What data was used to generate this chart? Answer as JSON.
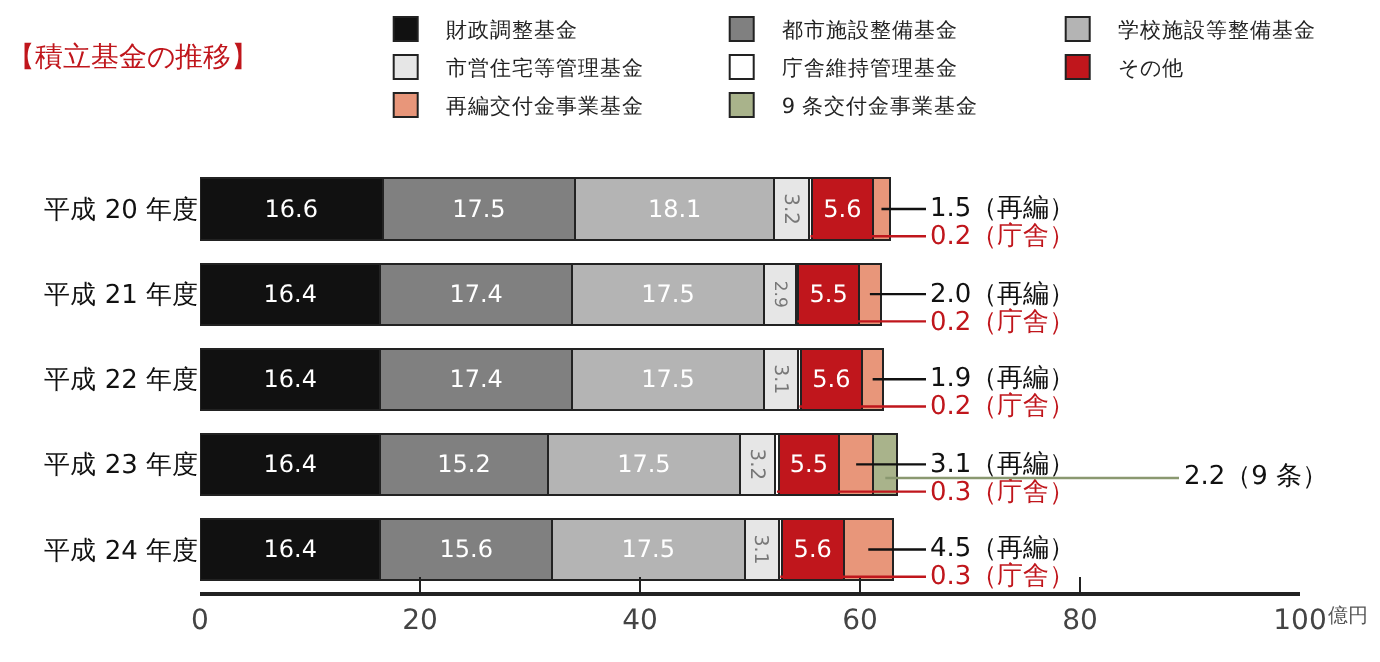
{
  "chart_data": {
    "type": "bar",
    "orientation": "horizontal",
    "stacked": true,
    "title": "【積立基金の推移】",
    "xlabel": "億円",
    "categories": [
      "平成 20 年度",
      "平成 21 年度",
      "平成 22 年度",
      "平成 23 年度",
      "平成 24 年度"
    ],
    "series": [
      {
        "name": "財政調整基金",
        "color": "#111111",
        "values": [
          16.6,
          16.4,
          16.4,
          16.4,
          16.4
        ],
        "value_labels": [
          "16.6",
          "16.4",
          "16.4",
          "16.4",
          "16.4"
        ]
      },
      {
        "name": "都市施設整備基金",
        "color": "#808080",
        "values": [
          17.5,
          17.4,
          17.4,
          15.2,
          15.6
        ],
        "value_labels": [
          "17.5",
          "17.4",
          "17.4",
          "15.2",
          "15.6"
        ]
      },
      {
        "name": "学校施設等整備基金",
        "color": "#b4b4b4",
        "values": [
          18.1,
          17.5,
          17.5,
          17.5,
          17.5
        ],
        "value_labels": [
          "18.1",
          "17.5",
          "17.5",
          "17.5",
          "17.5"
        ]
      },
      {
        "name": "市営住宅等管理基金",
        "color": "#e6e6e6",
        "values": [
          3.2,
          2.9,
          3.1,
          3.2,
          3.1
        ],
        "value_labels": [
          "3.2",
          "2.9",
          "3.1",
          "3.2",
          "3.1"
        ]
      },
      {
        "name": "庁舎維持管理基金",
        "color": "#ffffff",
        "values": [
          0.2,
          0.2,
          0.2,
          0.3,
          0.3
        ],
        "value_labels": [
          "0.2（庁舎）",
          "0.2（庁舎）",
          "0.2（庁舎）",
          "0.3（庁舎）",
          "0.3（庁舎）"
        ]
      },
      {
        "name": "その他",
        "color": "#c0161c",
        "values": [
          5.6,
          5.5,
          5.6,
          5.5,
          5.6
        ],
        "value_labels": [
          "5.6",
          "5.5",
          "5.6",
          "5.5",
          "5.6"
        ]
      },
      {
        "name": "再編交付金事業基金",
        "color": "#e8967a",
        "values": [
          1.5,
          2.0,
          1.9,
          3.1,
          4.5
        ],
        "value_labels": [
          "1.5（再編）",
          "2.0（再編）",
          "1.9（再編）",
          "3.1（再編）",
          "4.5（再編）"
        ]
      },
      {
        "name": "9 条交付金事業基金",
        "color": "#a9b38b",
        "values": [
          null,
          null,
          null,
          2.2,
          null
        ],
        "value_labels": [
          null,
          null,
          null,
          "2.2（9 条）",
          null
        ]
      }
    ],
    "xlim": [
      0,
      100
    ],
    "xticks": [
      0,
      20,
      40,
      60,
      80,
      100
    ],
    "legend": "top"
  }
}
